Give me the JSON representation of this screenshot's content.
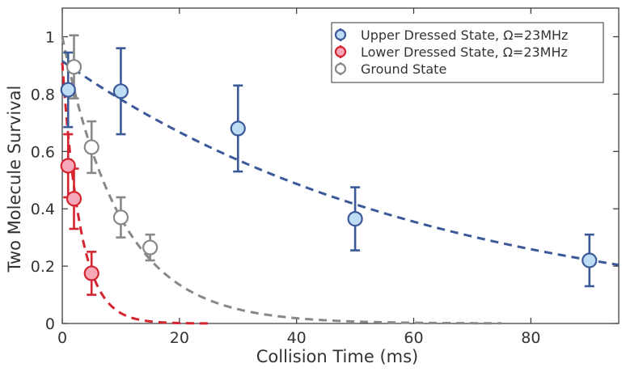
{
  "chart_data": {
    "type": "scatter",
    "title": "",
    "xlabel": "Collision Time (ms)",
    "ylabel": "Two Molecule Survival",
    "xlim": [
      0,
      95
    ],
    "ylim": [
      0,
      1.1
    ],
    "xticks": [
      0,
      20,
      40,
      60,
      80
    ],
    "yticks": [
      0,
      0.2,
      0.4,
      0.6,
      0.8,
      1
    ],
    "xtick_labels": [
      "0",
      "20",
      "40",
      "60",
      "80"
    ],
    "ytick_labels": [
      "0",
      "0.2",
      "0.4",
      "0.6",
      "0.8",
      "1"
    ],
    "legend_position": "top-right",
    "series": [
      {
        "name": "Upper Dressed State, Ω=23MHz",
        "color": "#3b5998",
        "fill": "#bfdcf5",
        "marker": "circle",
        "points": [
          {
            "x": 1,
            "y": 0.815,
            "err": 0.13
          },
          {
            "x": 10,
            "y": 0.81,
            "err": 0.15
          },
          {
            "x": 30,
            "y": 0.68,
            "err": 0.15
          },
          {
            "x": 50,
            "y": 0.365,
            "err": 0.11
          },
          {
            "x": 90,
            "y": 0.22,
            "err": 0.09
          }
        ],
        "fit": {
          "model": "exponential_decay",
          "A": 0.915,
          "tau": 63.4,
          "x_from": 0,
          "x_to": 95
        }
      },
      {
        "name": "Lower Dressed State, Ω=23MHz",
        "color": "#d42430",
        "fill": "#f7a8b8",
        "marker": "circle",
        "points": [
          {
            "x": 1,
            "y": 0.55,
            "err": 0.11
          },
          {
            "x": 2,
            "y": 0.435,
            "err": 0.105
          },
          {
            "x": 5,
            "y": 0.175,
            "err": 0.075
          }
        ],
        "fit": {
          "model": "exponential_decay",
          "A": 0.91,
          "tau": 3.1,
          "x_from": 0,
          "x_to": 25
        }
      },
      {
        "name": "Ground State",
        "color": "#888888",
        "fill": "#ffffff",
        "marker": "circle",
        "points": [
          {
            "x": 2,
            "y": 0.895,
            "err": 0.11
          },
          {
            "x": 5,
            "y": 0.615,
            "err": 0.09
          },
          {
            "x": 10,
            "y": 0.37,
            "err": 0.07
          },
          {
            "x": 15,
            "y": 0.265,
            "err": 0.045
          }
        ],
        "fit": {
          "model": "exponential_decay",
          "A": 1.0,
          "tau": 10,
          "x_from": 0,
          "x_to": 75
        }
      }
    ]
  }
}
